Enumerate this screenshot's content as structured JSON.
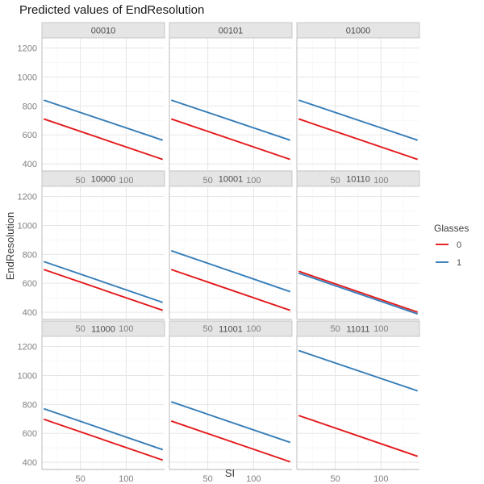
{
  "chart_data": {
    "type": "line",
    "title": "Predicted values of EndResolution",
    "xlabel": "SI",
    "ylabel": "EndResolution",
    "x_range": [
      8,
      142
    ],
    "ylim": [
      350,
      1270
    ],
    "x_ticks": [
      50,
      100
    ],
    "x_tick_labels": [
      "50",
      "100"
    ],
    "y_ticks": [
      400,
      600,
      800,
      1000,
      1200
    ],
    "y_tick_labels": [
      "400",
      "600",
      "800",
      "1000",
      "1200"
    ],
    "grid": true,
    "legend": {
      "title": "Glasses",
      "position": "right",
      "entries": [
        {
          "label": "0",
          "color": "#E41A1C"
        },
        {
          "label": "1",
          "color": "#377EB8"
        }
      ]
    },
    "facets": [
      {
        "label": "00010",
        "series": [
          {
            "name": "0",
            "color": "#E41A1C",
            "x": [
              10,
              140
            ],
            "y": [
              710,
              430
            ]
          },
          {
            "name": "1",
            "color": "#377EB8",
            "x": [
              10,
              140
            ],
            "y": [
              840,
              563
            ]
          }
        ]
      },
      {
        "label": "00101",
        "series": [
          {
            "name": "0",
            "color": "#E41A1C",
            "x": [
              10,
              140
            ],
            "y": [
              710,
              430
            ]
          },
          {
            "name": "1",
            "color": "#377EB8",
            "x": [
              10,
              140
            ],
            "y": [
              840,
              563
            ]
          }
        ]
      },
      {
        "label": "01000",
        "series": [
          {
            "name": "0",
            "color": "#E41A1C",
            "x": [
              10,
              140
            ],
            "y": [
              710,
              430
            ]
          },
          {
            "name": "1",
            "color": "#377EB8",
            "x": [
              10,
              140
            ],
            "y": [
              840,
              563
            ]
          }
        ]
      },
      {
        "label": "10000",
        "series": [
          {
            "name": "0",
            "color": "#E41A1C",
            "x": [
              10,
              140
            ],
            "y": [
              695,
              413
            ]
          },
          {
            "name": "1",
            "color": "#377EB8",
            "x": [
              10,
              140
            ],
            "y": [
              750,
              468
            ]
          }
        ]
      },
      {
        "label": "10001",
        "series": [
          {
            "name": "0",
            "color": "#E41A1C",
            "x": [
              10,
              140
            ],
            "y": [
              695,
              413
            ]
          },
          {
            "name": "1",
            "color": "#377EB8",
            "x": [
              10,
              140
            ],
            "y": [
              825,
              542
            ]
          }
        ]
      },
      {
        "label": "10110",
        "series": [
          {
            "name": "0",
            "color": "#E41A1C",
            "x": [
              10,
              140
            ],
            "y": [
              683,
              400
            ]
          },
          {
            "name": "1",
            "color": "#377EB8",
            "x": [
              10,
              140
            ],
            "y": [
              670,
              388
            ]
          }
        ]
      },
      {
        "label": "11000",
        "series": [
          {
            "name": "0",
            "color": "#E41A1C",
            "x": [
              10,
              140
            ],
            "y": [
              697,
              415
            ]
          },
          {
            "name": "1",
            "color": "#377EB8",
            "x": [
              10,
              140
            ],
            "y": [
              770,
              487
            ]
          }
        ]
      },
      {
        "label": "11001",
        "series": [
          {
            "name": "0",
            "color": "#E41A1C",
            "x": [
              10,
              140
            ],
            "y": [
              685,
              403
            ]
          },
          {
            "name": "1",
            "color": "#377EB8",
            "x": [
              10,
              140
            ],
            "y": [
              818,
              537
            ]
          }
        ]
      },
      {
        "label": "11011",
        "series": [
          {
            "name": "0",
            "color": "#E41A1C",
            "x": [
              10,
              140
            ],
            "y": [
              723,
              441
            ]
          },
          {
            "name": "1",
            "color": "#377EB8",
            "x": [
              10,
              140
            ],
            "y": [
              1172,
              893
            ]
          }
        ]
      }
    ]
  }
}
